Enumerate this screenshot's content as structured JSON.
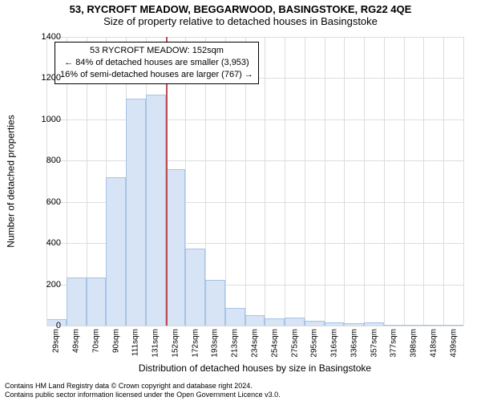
{
  "title": "53, RYCROFT MEADOW, BEGGARWOOD, BASINGSTOKE, RG22 4QE",
  "subtitle": "Size of property relative to detached houses in Basingstoke",
  "ylabel": "Number of detached properties",
  "xlabel": "Distribution of detached houses by size in Basingstoke",
  "chart": {
    "type": "histogram",
    "background_color": "#ffffff",
    "grid_color": "#dddddd",
    "axis_color": "#000000",
    "bar_fill": "#d6e4f5",
    "bar_stroke": "#a7c3e6",
    "refline_color": "#bf4b52",
    "ylim": [
      0,
      1400
    ],
    "ytick_step": 200,
    "yticks": [
      0,
      200,
      400,
      600,
      800,
      1000,
      1200,
      1400
    ],
    "xticks": [
      "29sqm",
      "49sqm",
      "70sqm",
      "90sqm",
      "111sqm",
      "131sqm",
      "152sqm",
      "172sqm",
      "193sqm",
      "213sqm",
      "234sqm",
      "254sqm",
      "275sqm",
      "295sqm",
      "316sqm",
      "336sqm",
      "357sqm",
      "377sqm",
      "398sqm",
      "418sqm",
      "439sqm"
    ],
    "values": [
      30,
      235,
      235,
      720,
      1100,
      1120,
      760,
      375,
      220,
      85,
      50,
      35,
      40,
      25,
      15,
      10,
      15,
      5,
      0,
      0,
      0
    ],
    "reference_index": 6,
    "bar_width_ratio": 1.0,
    "label_fontsize": 12,
    "tick_fontsize": 10
  },
  "annotation": {
    "line1": "53 RYCROFT MEADOW: 152sqm",
    "line2": "← 84% of detached houses are smaller (3,953)",
    "line3": "16% of semi-detached houses are larger (767) →"
  },
  "footer": {
    "line1": "Contains HM Land Registry data © Crown copyright and database right 2024.",
    "line2": "Contains public sector information licensed under the Open Government Licence v3.0."
  }
}
